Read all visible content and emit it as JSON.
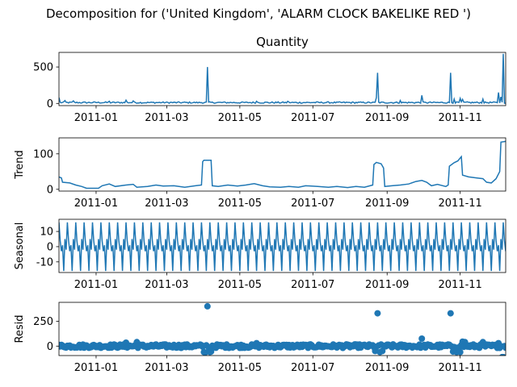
{
  "figure": {
    "suptitle": "Decomposition for ('United Kingdom', 'ALARM CLOCK BAKELIKE RED ')"
  },
  "chart_data": [
    {
      "type": "line",
      "title": "Quantity",
      "ylabel": "",
      "color": "#1f77b4",
      "xlim": [
        "2010-12-01",
        "2011-12-09"
      ],
      "ylim": [
        -30,
        700
      ],
      "yticks": [
        0,
        500
      ],
      "xticks": [
        "2011-01",
        "2011-03",
        "2011-05",
        "2011-07",
        "2011-09",
        "2011-11"
      ],
      "baseline": 12,
      "noise": 10,
      "spikes": [
        {
          "x": "2010-12-01",
          "y": 80
        },
        {
          "x": "2010-12-06",
          "y": 40
        },
        {
          "x": "2010-12-13",
          "y": 35
        },
        {
          "x": "2011-01-12",
          "y": 30
        },
        {
          "x": "2011-01-26",
          "y": 45
        },
        {
          "x": "2011-02-01",
          "y": 35
        },
        {
          "x": "2011-04-04",
          "y": 500
        },
        {
          "x": "2011-05-15",
          "y": 30
        },
        {
          "x": "2011-06-10",
          "y": 30
        },
        {
          "x": "2011-08-23",
          "y": 80
        },
        {
          "x": "2011-08-24",
          "y": 420
        },
        {
          "x": "2011-09-12",
          "y": 40
        },
        {
          "x": "2011-09-30",
          "y": 110
        },
        {
          "x": "2011-10-24",
          "y": 420
        },
        {
          "x": "2011-10-27",
          "y": 60
        },
        {
          "x": "2011-11-01",
          "y": 70
        },
        {
          "x": "2011-11-03",
          "y": 55
        },
        {
          "x": "2011-11-20",
          "y": 60
        },
        {
          "x": "2011-12-03",
          "y": 150
        },
        {
          "x": "2011-12-05",
          "y": 90
        },
        {
          "x": "2011-12-07",
          "y": 680
        }
      ]
    },
    {
      "type": "line",
      "title": "",
      "ylabel": "Trend",
      "color": "#1f77b4",
      "xlim": [
        "2010-12-01",
        "2011-12-09"
      ],
      "ylim": [
        -5,
        145
      ],
      "yticks": [
        0,
        100
      ],
      "xticks": [
        "2011-01",
        "2011-03",
        "2011-05",
        "2011-07",
        "2011-09",
        "2011-11"
      ],
      "points": [
        [
          "2010-12-01",
          35
        ],
        [
          "2010-12-03",
          32
        ],
        [
          "2010-12-04",
          20
        ],
        [
          "2010-12-10",
          18
        ],
        [
          "2010-12-15",
          12
        ],
        [
          "2010-12-20",
          8
        ],
        [
          "2010-12-24",
          3
        ],
        [
          "2011-01-03",
          3
        ],
        [
          "2011-01-06",
          10
        ],
        [
          "2011-01-12",
          15
        ],
        [
          "2011-01-17",
          8
        ],
        [
          "2011-01-26",
          12
        ],
        [
          "2011-02-01",
          14
        ],
        [
          "2011-02-04",
          6
        ],
        [
          "2011-02-13",
          8
        ],
        [
          "2011-02-20",
          12
        ],
        [
          "2011-02-26",
          9
        ],
        [
          "2011-03-07",
          10
        ],
        [
          "2011-03-16",
          6
        ],
        [
          "2011-03-25",
          10
        ],
        [
          "2011-03-30",
          12
        ],
        [
          "2011-03-31",
          78
        ],
        [
          "2011-04-01",
          82
        ],
        [
          "2011-04-07",
          82
        ],
        [
          "2011-04-08",
          10
        ],
        [
          "2011-04-13",
          8
        ],
        [
          "2011-04-21",
          12
        ],
        [
          "2011-04-29",
          9
        ],
        [
          "2011-05-06",
          12
        ],
        [
          "2011-05-13",
          16
        ],
        [
          "2011-05-20",
          10
        ],
        [
          "2011-05-26",
          7
        ],
        [
          "2011-06-04",
          6
        ],
        [
          "2011-06-11",
          8
        ],
        [
          "2011-06-19",
          6
        ],
        [
          "2011-06-25",
          10
        ],
        [
          "2011-07-05",
          8
        ],
        [
          "2011-07-14",
          6
        ],
        [
          "2011-07-21",
          8
        ],
        [
          "2011-07-30",
          5
        ],
        [
          "2011-08-06",
          8
        ],
        [
          "2011-08-13",
          6
        ],
        [
          "2011-08-20",
          12
        ],
        [
          "2011-08-21",
          70
        ],
        [
          "2011-08-23",
          76
        ],
        [
          "2011-08-27",
          72
        ],
        [
          "2011-08-29",
          60
        ],
        [
          "2011-08-30",
          8
        ],
        [
          "2011-09-05",
          10
        ],
        [
          "2011-09-12",
          12
        ],
        [
          "2011-09-19",
          15
        ],
        [
          "2011-09-25",
          22
        ],
        [
          "2011-09-30",
          25
        ],
        [
          "2011-10-04",
          20
        ],
        [
          "2011-10-08",
          10
        ],
        [
          "2011-10-13",
          14
        ],
        [
          "2011-10-20",
          8
        ],
        [
          "2011-10-22",
          12
        ],
        [
          "2011-10-23",
          65
        ],
        [
          "2011-10-27",
          75
        ],
        [
          "2011-10-30",
          80
        ],
        [
          "2011-11-02",
          92
        ],
        [
          "2011-11-03",
          40
        ],
        [
          "2011-11-08",
          35
        ],
        [
          "2011-11-15",
          32
        ],
        [
          "2011-11-20",
          30
        ],
        [
          "2011-11-23",
          20
        ],
        [
          "2011-11-27",
          18
        ],
        [
          "2011-12-01",
          30
        ],
        [
          "2011-12-04",
          50
        ],
        [
          "2011-12-05",
          133
        ],
        [
          "2011-12-09",
          135
        ]
      ]
    },
    {
      "type": "line",
      "title": "",
      "ylabel": "Seasonal",
      "color": "#1f77b4",
      "xlim": [
        "2010-12-01",
        "2011-12-09"
      ],
      "ylim": [
        -17,
        18
      ],
      "yticks": [
        -10,
        0,
        10
      ],
      "xticks": [
        "2011-01",
        "2011-03",
        "2011-05",
        "2011-07",
        "2011-09",
        "2011-11"
      ],
      "period_days": 7,
      "weekly_pattern": [
        16,
        4,
        -3,
        1,
        -16,
        5,
        -2
      ]
    },
    {
      "type": "scatter",
      "title": "",
      "ylabel": "Resid",
      "color": "#1f77b4",
      "xlim": [
        "2010-12-01",
        "2011-12-09"
      ],
      "ylim": [
        -95,
        440
      ],
      "yticks": [
        0,
        250
      ],
      "xticks": [
        "2011-01",
        "2011-03",
        "2011-05",
        "2011-07",
        "2011-09",
        "2011-11"
      ],
      "baseline_noise": 18,
      "outliers": [
        {
          "x": "2011-04-04",
          "y": 400
        },
        {
          "x": "2011-08-24",
          "y": 330
        },
        {
          "x": "2011-10-24",
          "y": 330
        },
        {
          "x": "2011-09-30",
          "y": 75
        },
        {
          "x": "2011-04-01",
          "y": -60
        },
        {
          "x": "2011-04-02",
          "y": -65
        },
        {
          "x": "2011-04-06",
          "y": -60
        },
        {
          "x": "2011-04-07",
          "y": -55
        },
        {
          "x": "2011-08-22",
          "y": -50
        },
        {
          "x": "2011-08-26",
          "y": -60
        },
        {
          "x": "2011-08-28",
          "y": -50
        },
        {
          "x": "2011-10-26",
          "y": -55
        },
        {
          "x": "2011-10-29",
          "y": -60
        },
        {
          "x": "2011-11-01",
          "y": -60
        },
        {
          "x": "2011-11-03",
          "y": 45
        },
        {
          "x": "2011-11-05",
          "y": 40
        },
        {
          "x": "2011-11-20",
          "y": 40
        },
        {
          "x": "2011-12-03",
          "y": 30
        },
        {
          "x": "2011-12-06",
          "y": -110
        },
        {
          "x": "2011-12-07",
          "y": -110
        },
        {
          "x": "2011-05-15",
          "y": 30
        },
        {
          "x": "2011-01-26",
          "y": 35
        },
        {
          "x": "2011-02-04",
          "y": 40
        }
      ]
    }
  ]
}
